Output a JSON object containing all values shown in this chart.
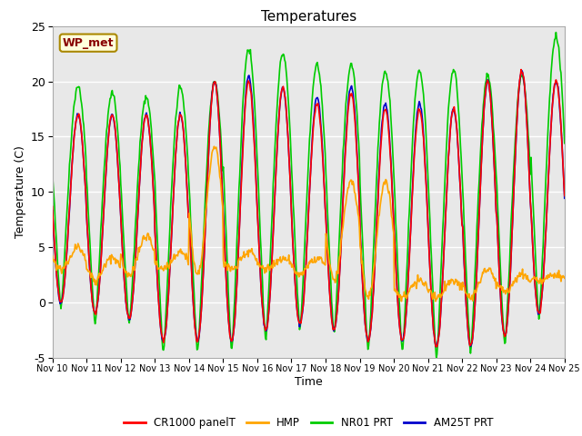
{
  "title": "Temperatures",
  "xlabel": "Time",
  "ylabel": "Temperature (C)",
  "ylim": [
    -5,
    25
  ],
  "xlim": [
    0,
    15
  ],
  "bg_color": "#e8e8e8",
  "fig_color": "#ffffff",
  "annotation_text": "WP_met",
  "annotation_bg": "#ffffdd",
  "annotation_border": "#aa8800",
  "annotation_text_color": "#880000",
  "x_tick_labels": [
    "Nov 10",
    "Nov 11",
    "Nov 12",
    "Nov 13",
    "Nov 14",
    "Nov 15",
    "Nov 16",
    "Nov 17",
    "Nov 18",
    "Nov 19",
    "Nov 20",
    "Nov 21",
    "Nov 22",
    "Nov 23",
    "Nov 24",
    "Nov 25"
  ],
  "y_ticks": [
    -5,
    0,
    5,
    10,
    15,
    20,
    25
  ],
  "legend_entries": [
    "CR1000 panelT",
    "HMP",
    "NR01 PRT",
    "AM25T PRT"
  ],
  "legend_colors": [
    "#ff0000",
    "#ffa500",
    "#00cc00",
    "#0000cc"
  ],
  "series_colors": [
    "#ff0000",
    "#ffa500",
    "#00cc00",
    "#0000cc"
  ],
  "series_linewidths": [
    1.2,
    1.2,
    1.2,
    1.2
  ],
  "grid_color": "#ffffff",
  "spine_color": "#aaaaaa"
}
